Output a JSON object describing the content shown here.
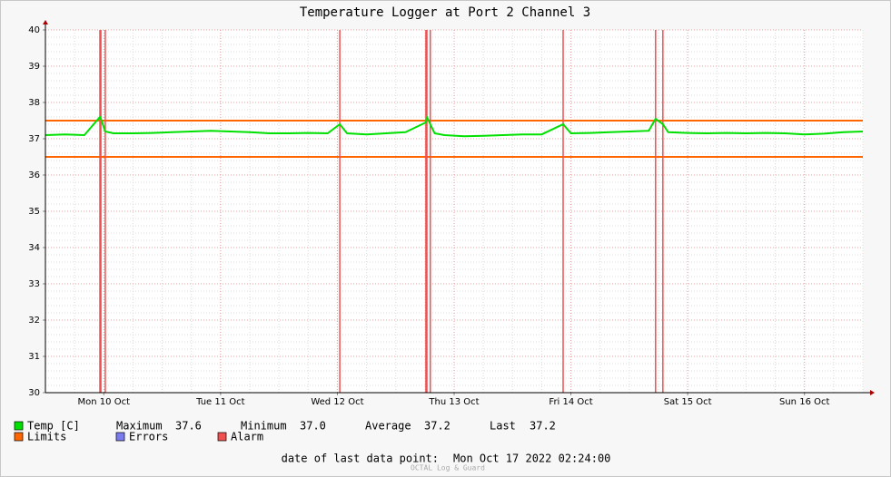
{
  "chart_data": {
    "type": "line",
    "title": "Temperature Logger at Port 2 Channel 3",
    "xlim": [
      0,
      168
    ],
    "xticks": [
      {
        "value": 12,
        "label": "Mon 10 Oct"
      },
      {
        "value": 36,
        "label": "Tue 11 Oct"
      },
      {
        "value": 60,
        "label": "Wed 12 Oct"
      },
      {
        "value": 84,
        "label": "Thu 13 Oct"
      },
      {
        "value": 108,
        "label": "Fri 14 Oct"
      },
      {
        "value": 132,
        "label": "Sat 15 Oct"
      },
      {
        "value": 156,
        "label": "Sun 16 Oct"
      }
    ],
    "ylim": [
      30,
      40
    ],
    "yticks": [
      30,
      31,
      32,
      33,
      34,
      35,
      36,
      37,
      38,
      39,
      40
    ],
    "grid": true,
    "minor_grid": true,
    "series": [
      {
        "name": "Temp [C]",
        "color": "#00e000",
        "x": [
          0,
          4,
          8,
          11.2,
          11.4,
          12.3,
          14,
          18,
          22,
          26,
          30,
          34,
          38,
          42,
          46,
          50,
          54,
          58,
          60.5,
          62,
          66,
          70,
          74,
          78.2,
          78.4,
          79.1,
          80,
          82,
          86,
          90,
          94,
          98,
          102,
          106.4,
          108,
          112,
          116,
          120,
          124,
          125.4,
          126.9,
          128,
          132,
          136,
          140,
          144,
          148,
          152,
          156,
          160,
          164,
          168
        ],
        "values": [
          37.1,
          37.12,
          37.1,
          37.6,
          37.55,
          37.2,
          37.15,
          37.15,
          37.16,
          37.18,
          37.2,
          37.22,
          37.2,
          37.18,
          37.15,
          37.15,
          37.16,
          37.15,
          37.4,
          37.15,
          37.12,
          37.15,
          37.18,
          37.45,
          37.6,
          37.4,
          37.15,
          37.1,
          37.07,
          37.08,
          37.1,
          37.12,
          37.12,
          37.4,
          37.15,
          37.16,
          37.18,
          37.2,
          37.22,
          37.55,
          37.4,
          37.18,
          37.16,
          37.15,
          37.16,
          37.15,
          37.16,
          37.15,
          37.12,
          37.14,
          37.18,
          37.2
        ]
      }
    ],
    "stats": [
      {
        "label": "Maximum",
        "value": 37.6
      },
      {
        "label": "Minimum",
        "value": 37,
        "value_label": "37.0"
      },
      {
        "label": "Average",
        "value": 37.2
      },
      {
        "label": "Last",
        "value": 37.2
      }
    ],
    "limits": {
      "name": "Limits",
      "color": "#ff6600",
      "values": [
        37.5,
        36.5
      ]
    },
    "errors": {
      "name": "Errors",
      "color": "#7b7bf0"
    },
    "alarms": {
      "name": "Alarm",
      "color": "#f05050",
      "x": [
        11.2,
        11.4,
        12.3,
        60.5,
        78.2,
        78.4,
        79.1,
        106.4,
        125.4,
        126.9
      ]
    },
    "footer": {
      "label": "date of last data point:",
      "value": "Mon Oct 17 2022 02:24:00"
    },
    "watermark": "OCTAL Log & Guard"
  }
}
